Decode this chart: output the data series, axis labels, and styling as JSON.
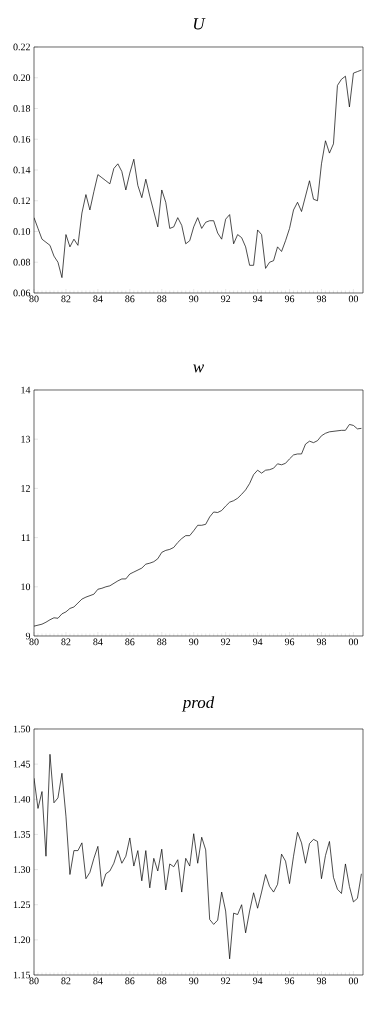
{
  "chart_data": [
    {
      "type": "line",
      "title": "U",
      "color": "#000000",
      "x": [
        1980.0,
        1980.25,
        1980.5,
        1980.75,
        1981.0,
        1981.25,
        1981.5,
        1981.75,
        1982.0,
        1982.25,
        1982.5,
        1982.75,
        1983.0,
        1983.25,
        1983.5,
        1983.75,
        1984.0,
        1984.25,
        1984.5,
        1984.75,
        1985.0,
        1985.25,
        1985.5,
        1985.75,
        1986.0,
        1986.25,
        1986.5,
        1986.75,
        1987.0,
        1987.25,
        1987.5,
        1987.75,
        1988.0,
        1988.25,
        1988.5,
        1988.75,
        1989.0,
        1989.25,
        1989.5,
        1989.75,
        1990.0,
        1990.25,
        1990.5,
        1990.75,
        1991.0,
        1991.25,
        1991.5,
        1991.75,
        1992.0,
        1992.25,
        1992.5,
        1992.75,
        1993.0,
        1993.25,
        1993.5,
        1993.75,
        1994.0,
        1994.25,
        1994.5,
        1994.75,
        1995.0,
        1995.25,
        1995.5,
        1995.75,
        1996.0,
        1996.25,
        1996.5,
        1996.75,
        1997.0,
        1997.25,
        1997.5,
        1997.75,
        1998.0,
        1998.25,
        1998.5,
        1998.75,
        1999.0,
        1999.25,
        1999.5,
        1999.75,
        2000.0,
        2000.25,
        2000.5
      ],
      "values": [
        0.109,
        0.102,
        0.095,
        0.093,
        0.091,
        0.084,
        0.08,
        0.07,
        0.098,
        0.09,
        0.095,
        0.091,
        0.112,
        0.124,
        0.114,
        0.126,
        0.137,
        0.135,
        0.133,
        0.131,
        0.141,
        0.144,
        0.139,
        0.127,
        0.138,
        0.147,
        0.13,
        0.122,
        0.134,
        0.123,
        0.113,
        0.103,
        0.127,
        0.119,
        0.102,
        0.103,
        0.109,
        0.104,
        0.092,
        0.094,
        0.103,
        0.109,
        0.102,
        0.106,
        0.107,
        0.107,
        0.099,
        0.095,
        0.108,
        0.111,
        0.092,
        0.098,
        0.096,
        0.09,
        0.078,
        0.078,
        0.101,
        0.098,
        0.076,
        0.08,
        0.081,
        0.09,
        0.087,
        0.094,
        0.102,
        0.114,
        0.119,
        0.113,
        0.123,
        0.133,
        0.121,
        0.12,
        0.144,
        0.159,
        0.151,
        0.157,
        0.195,
        0.199,
        0.201,
        0.181,
        0.203,
        0.204,
        0.205
      ],
      "xlim": [
        1980,
        2000.6
      ],
      "xticks": [
        {
          "value": 1980,
          "label": "80"
        },
        {
          "value": 1982,
          "label": "82"
        },
        {
          "value": 1984,
          "label": "84"
        },
        {
          "value": 1986,
          "label": "86"
        },
        {
          "value": 1988,
          "label": "88"
        },
        {
          "value": 1990,
          "label": "90"
        },
        {
          "value": 1992,
          "label": "92"
        },
        {
          "value": 1994,
          "label": "94"
        },
        {
          "value": 1996,
          "label": "96"
        },
        {
          "value": 1998,
          "label": "98"
        },
        {
          "value": 2000,
          "label": "00"
        }
      ],
      "ylim": [
        0.06,
        0.22
      ],
      "yticks": [
        {
          "value": 0.06,
          "label": "0.06"
        },
        {
          "value": 0.08,
          "label": "0.08"
        },
        {
          "value": 0.1,
          "label": "0.10"
        },
        {
          "value": 0.12,
          "label": "0.12"
        },
        {
          "value": 0.14,
          "label": "0.14"
        },
        {
          "value": 0.16,
          "label": "0.16"
        },
        {
          "value": 0.18,
          "label": "0.18"
        },
        {
          "value": 0.2,
          "label": "0.20"
        },
        {
          "value": 0.22,
          "label": "0.22"
        }
      ]
    },
    {
      "type": "line",
      "title": "w",
      "color": "#000000",
      "x": [
        1980.0,
        1980.25,
        1980.5,
        1980.75,
        1981.0,
        1981.25,
        1981.5,
        1981.75,
        1982.0,
        1982.25,
        1982.5,
        1982.75,
        1983.0,
        1983.25,
        1983.5,
        1983.75,
        1984.0,
        1984.25,
        1984.5,
        1984.75,
        1985.0,
        1985.25,
        1985.5,
        1985.75,
        1986.0,
        1986.25,
        1986.5,
        1986.75,
        1987.0,
        1987.25,
        1987.5,
        1987.75,
        1988.0,
        1988.25,
        1988.5,
        1988.75,
        1989.0,
        1989.25,
        1989.5,
        1989.75,
        1990.0,
        1990.25,
        1990.5,
        1990.75,
        1991.0,
        1991.25,
        1991.5,
        1991.75,
        1992.0,
        1992.25,
        1992.5,
        1992.75,
        1993.0,
        1993.25,
        1993.5,
        1993.75,
        1994.0,
        1994.25,
        1994.5,
        1994.75,
        1995.0,
        1995.25,
        1995.5,
        1995.75,
        1996.0,
        1996.25,
        1996.5,
        1996.75,
        1997.0,
        1997.25,
        1997.5,
        1997.75,
        1998.0,
        1998.25,
        1998.5,
        1998.75,
        1999.0,
        1999.25,
        1999.5,
        1999.75,
        2000.0,
        2000.25,
        2000.5
      ],
      "values": [
        9.2,
        9.22,
        9.24,
        9.28,
        9.33,
        9.37,
        9.36,
        9.45,
        9.49,
        9.56,
        9.59,
        9.67,
        9.75,
        9.79,
        9.82,
        9.85,
        9.95,
        9.97,
        10.0,
        10.02,
        10.07,
        10.12,
        10.16,
        10.16,
        10.26,
        10.3,
        10.34,
        10.38,
        10.46,
        10.48,
        10.51,
        10.57,
        10.7,
        10.74,
        10.76,
        10.8,
        10.9,
        10.98,
        11.04,
        11.04,
        11.14,
        11.25,
        11.25,
        11.27,
        11.42,
        11.52,
        11.51,
        11.55,
        11.64,
        11.72,
        11.75,
        11.8,
        11.88,
        11.97,
        12.1,
        12.28,
        12.37,
        12.31,
        12.37,
        12.38,
        12.41,
        12.5,
        12.48,
        12.51,
        12.6,
        12.68,
        12.7,
        12.7,
        12.9,
        12.96,
        12.93,
        12.97,
        13.07,
        13.12,
        13.15,
        13.16,
        13.17,
        13.18,
        13.18,
        13.3,
        13.28,
        13.21,
        13.22
      ],
      "xlim": [
        1980,
        2000.6
      ],
      "xticks": [
        {
          "value": 1980,
          "label": "80"
        },
        {
          "value": 1982,
          "label": "82"
        },
        {
          "value": 1984,
          "label": "84"
        },
        {
          "value": 1986,
          "label": "86"
        },
        {
          "value": 1988,
          "label": "88"
        },
        {
          "value": 1990,
          "label": "90"
        },
        {
          "value": 1992,
          "label": "92"
        },
        {
          "value": 1994,
          "label": "94"
        },
        {
          "value": 1996,
          "label": "96"
        },
        {
          "value": 1998,
          "label": "98"
        },
        {
          "value": 2000,
          "label": "00"
        }
      ],
      "ylim": [
        9,
        14
      ],
      "yticks": [
        9,
        10,
        11,
        12,
        13,
        14
      ]
    },
    {
      "type": "line",
      "title": "prod",
      "color": "#000000",
      "x": [
        1980.0,
        1980.25,
        1980.5,
        1980.75,
        1981.0,
        1981.25,
        1981.5,
        1981.75,
        1982.0,
        1982.25,
        1982.5,
        1982.75,
        1983.0,
        1983.25,
        1983.5,
        1983.75,
        1984.0,
        1984.25,
        1984.5,
        1984.75,
        1985.0,
        1985.25,
        1985.5,
        1985.75,
        1986.0,
        1986.25,
        1986.5,
        1986.75,
        1987.0,
        1987.25,
        1987.5,
        1987.75,
        1988.0,
        1988.25,
        1988.5,
        1988.75,
        1989.0,
        1989.25,
        1989.5,
        1989.75,
        1990.0,
        1990.25,
        1990.5,
        1990.75,
        1991.0,
        1991.25,
        1991.5,
        1991.75,
        1992.0,
        1992.25,
        1992.5,
        1992.75,
        1993.0,
        1993.25,
        1993.5,
        1993.75,
        1994.0,
        1994.25,
        1994.5,
        1994.75,
        1995.0,
        1995.25,
        1995.5,
        1995.75,
        1996.0,
        1996.25,
        1996.5,
        1996.75,
        1997.0,
        1997.25,
        1997.5,
        1997.75,
        1998.0,
        1998.25,
        1998.5,
        1998.75,
        1999.0,
        1999.25,
        1999.5,
        1999.75,
        2000.0,
        2000.25,
        2000.5
      ],
      "values": [
        1.43,
        1.387,
        1.411,
        1.319,
        1.464,
        1.395,
        1.402,
        1.437,
        1.376,
        1.293,
        1.327,
        1.327,
        1.338,
        1.287,
        1.296,
        1.316,
        1.333,
        1.276,
        1.294,
        1.298,
        1.309,
        1.327,
        1.309,
        1.319,
        1.345,
        1.305,
        1.327,
        1.284,
        1.327,
        1.274,
        1.316,
        1.298,
        1.329,
        1.271,
        1.308,
        1.304,
        1.314,
        1.268,
        1.316,
        1.305,
        1.351,
        1.309,
        1.346,
        1.328,
        1.229,
        1.222,
        1.228,
        1.268,
        1.241,
        1.173,
        1.238,
        1.236,
        1.25,
        1.21,
        1.241,
        1.267,
        1.245,
        1.268,
        1.293,
        1.276,
        1.268,
        1.279,
        1.322,
        1.312,
        1.28,
        1.319,
        1.353,
        1.338,
        1.309,
        1.337,
        1.343,
        1.34,
        1.287,
        1.32,
        1.34,
        1.289,
        1.272,
        1.266,
        1.308,
        1.276,
        1.254,
        1.259,
        1.294
      ],
      "xlim": [
        1980,
        2000.6
      ],
      "xticks": [
        {
          "value": 1980,
          "label": "80"
        },
        {
          "value": 1982,
          "label": "82"
        },
        {
          "value": 1984,
          "label": "84"
        },
        {
          "value": 1986,
          "label": "86"
        },
        {
          "value": 1988,
          "label": "88"
        },
        {
          "value": 1990,
          "label": "90"
        },
        {
          "value": 1992,
          "label": "92"
        },
        {
          "value": 1994,
          "label": "94"
        },
        {
          "value": 1996,
          "label": "96"
        },
        {
          "value": 1998,
          "label": "98"
        },
        {
          "value": 2000,
          "label": "00"
        }
      ],
      "ylim": [
        1.15,
        1.5
      ],
      "yticks": [
        {
          "value": 1.15,
          "label": "1.15"
        },
        {
          "value": 1.2,
          "label": "1.20"
        },
        {
          "value": 1.25,
          "label": "1.25"
        },
        {
          "value": 1.3,
          "label": "1.30"
        },
        {
          "value": 1.35,
          "label": "1.35"
        },
        {
          "value": 1.4,
          "label": "1.40"
        },
        {
          "value": 1.45,
          "label": "1.45"
        },
        {
          "value": 1.5,
          "label": "1.50"
        }
      ]
    }
  ]
}
